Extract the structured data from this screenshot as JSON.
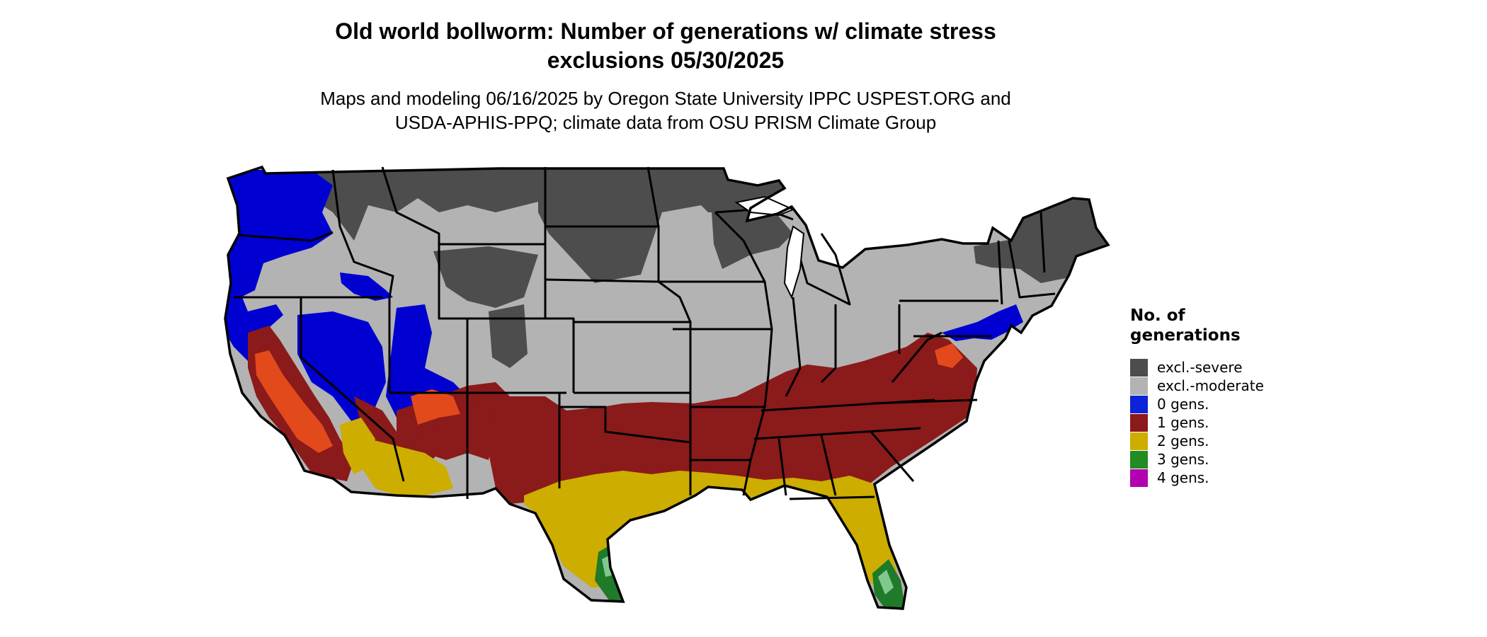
{
  "title_line1": "Old world bollworm: Number of generations w/ climate stress",
  "title_line2": "exclusions 05/30/2025",
  "subtitle_line1": "Maps and modeling 06/16/2025 by Oregon State University IPPC USPEST.ORG and",
  "subtitle_line2": "USDA-APHIS-PPQ; climate data from OSU PRISM Climate Group",
  "legend": {
    "title_line1": "No. of",
    "title_line2": "generations",
    "items": [
      {
        "label": "excl.-severe",
        "color": "#4d4d4d"
      },
      {
        "label": "excl.-moderate",
        "color": "#b3b3b3"
      },
      {
        "label": "0 gens.",
        "color": "#0b24d8"
      },
      {
        "label": "1 gens.",
        "color": "#8b1a1a"
      },
      {
        "label": "2 gens.",
        "color": "#cdad00"
      },
      {
        "label": "3 gens.",
        "color": "#228b22"
      },
      {
        "label": "4 gens.",
        "color": "#b000b0"
      }
    ]
  },
  "colors": {
    "severe": "#4d4d4d",
    "moderate": "#b3b3b3",
    "zero": "#0000d0",
    "one": "#8b1a1a",
    "two": "#cdad00",
    "three": "#1f7a2a",
    "orange": "#e24a1c",
    "border": "#000000"
  }
}
